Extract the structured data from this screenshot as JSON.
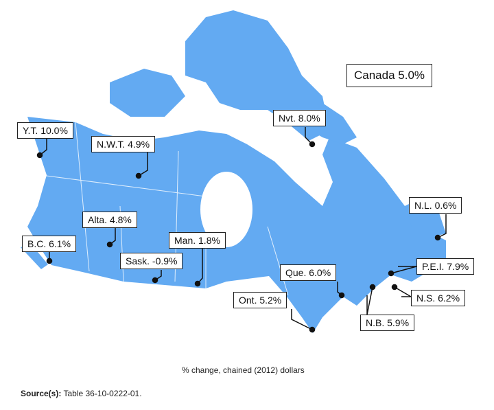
{
  "map": {
    "land_color": "#63aaf2",
    "national": {
      "label": "Canada 5.0%"
    },
    "regions": [
      {
        "id": "yt",
        "label": "Y.T. 10.0%"
      },
      {
        "id": "nwt",
        "label": "N.W.T. 4.9%"
      },
      {
        "id": "nvt",
        "label": "Nvt. 8.0%"
      },
      {
        "id": "bc",
        "label": "B.C. 6.1%"
      },
      {
        "id": "alta",
        "label": "Alta. 4.8%"
      },
      {
        "id": "sask",
        "label": "Sask. -0.9%"
      },
      {
        "id": "man",
        "label": "Man. 1.8%"
      },
      {
        "id": "ont",
        "label": "Ont. 5.2%"
      },
      {
        "id": "que",
        "label": "Que. 6.0%"
      },
      {
        "id": "nl",
        "label": "N.L. 0.6%"
      },
      {
        "id": "pei",
        "label": "P.E.I. 7.9%"
      },
      {
        "id": "ns",
        "label": "N.S. 6.2%"
      },
      {
        "id": "nb",
        "label": "N.B. 5.9%"
      }
    ]
  },
  "note": "% change, chained (2012) dollars",
  "source": {
    "label": "Source(s):",
    "text": "Table 36-10-0222-01."
  }
}
